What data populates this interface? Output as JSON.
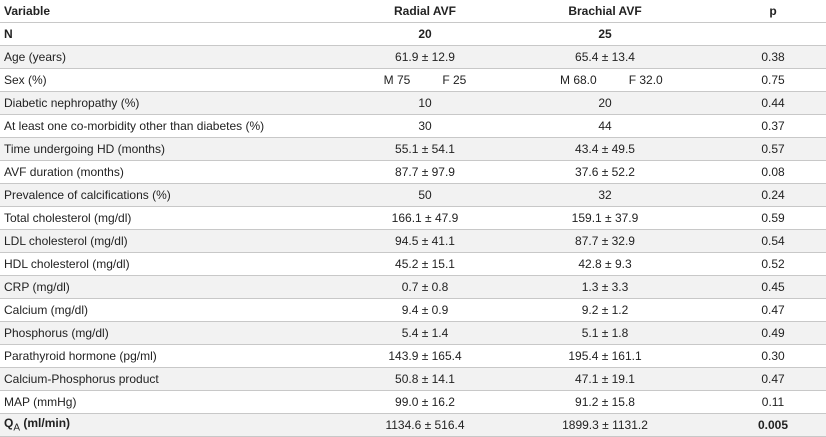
{
  "table": {
    "header": [
      "Variable",
      "Radial AVF",
      "Brachial AVF",
      "p"
    ],
    "rows": [
      [
        "N",
        "20",
        "25",
        ""
      ],
      [
        "Age (years)",
        "61.9 ± 12.9",
        "65.4 ± 13.4",
        "0.38"
      ],
      [
        "Sex (%)",
        [
          "M 75",
          "F 25"
        ],
        [
          "M 68.0",
          "F 32.0"
        ],
        "0.75"
      ],
      [
        "Diabetic nephropathy (%)",
        "10",
        "20",
        "0.44"
      ],
      [
        "At least one co-morbidity other than diabetes (%)",
        "30",
        "44",
        "0.37"
      ],
      [
        "Time undergoing HD (months)",
        "55.1 ± 54.1",
        "43.4 ± 49.5",
        "0.57"
      ],
      [
        "AVF duration (months)",
        "87.7 ± 97.9",
        "37.6 ± 52.2",
        "0.08"
      ],
      [
        "Prevalence of calcifications (%)",
        "50",
        "32",
        "0.24"
      ],
      [
        "Total cholesterol (mg/dl)",
        "166.1 ± 47.9",
        "159.1 ± 37.9",
        "0.59"
      ],
      [
        "LDL cholesterol (mg/dl)",
        "94.5 ± 41.1",
        "87.7 ± 32.9",
        "0.54"
      ],
      [
        "HDL cholesterol (mg/dl)",
        "45.2 ± 15.1",
        "42.8 ± 9.3",
        "0.52"
      ],
      [
        "CRP (mg/dl)",
        "0.7 ± 0.8",
        "1.3 ± 3.3",
        "0.45"
      ],
      [
        "Calcium (mg/dl)",
        "9.4 ± 0.9",
        "9.2 ± 1.2",
        "0.47"
      ],
      [
        "Phosphorus (mg/dl)",
        "5.4 ± 1.4",
        "5.1 ± 1.8",
        "0.49"
      ],
      [
        "Parathyroid hormone (pg/ml)",
        "143.9 ± 165.4",
        "195.4 ± 161.1",
        "0.30"
      ],
      [
        "Calcium-Phosphorus product",
        "50.8 ± 14.1",
        "47.1 ± 19.1",
        "0.47"
      ],
      [
        "MAP (mmHg)",
        "99.0 ± 16.2",
        "91.2 ± 15.8",
        "0.11"
      ],
      [
        {
          "symbol": "Q",
          "subscript": "A",
          "unit": "(ml/min)"
        },
        "1134.6 ± 516.4",
        "1899.3 ± 1131.2",
        "0.005"
      ]
    ]
  }
}
